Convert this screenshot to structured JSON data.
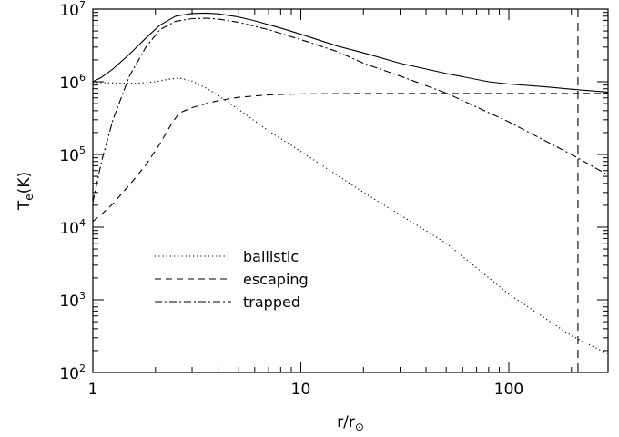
{
  "chart_data": {
    "type": "line",
    "xlabel": {
      "main": "r/r",
      "sub": "⊙"
    },
    "ylabel": {
      "main": "T",
      "sub": "e",
      "rest": "(K)"
    },
    "x_scale": "log",
    "y_scale": "log",
    "xlim": [
      1,
      300
    ],
    "ylim": [
      100,
      10000000
    ],
    "x_ticks": [
      {
        "value": 1,
        "label": "1"
      },
      {
        "value": 10,
        "label": "10"
      },
      {
        "value": 100,
        "label": "100"
      }
    ],
    "y_ticks": [
      {
        "value": 100,
        "base": "10",
        "exp": "2"
      },
      {
        "value": 1000,
        "base": "10",
        "exp": "3"
      },
      {
        "value": 10000,
        "base": "10",
        "exp": "4"
      },
      {
        "value": 100000,
        "base": "10",
        "exp": "5"
      },
      {
        "value": 1000000,
        "base": "10",
        "exp": "6"
      },
      {
        "value": 10000000,
        "base": "10",
        "exp": "7"
      }
    ],
    "grid": false,
    "legend_position": "lower-left",
    "vertical_line": {
      "x": 215,
      "style": "dashed"
    },
    "series": [
      {
        "key": "total",
        "style": "solid",
        "x": [
          1,
          1.1,
          1.25,
          1.5,
          1.8,
          2.1,
          2.5,
          3,
          3.5,
          4,
          5,
          6,
          8,
          10,
          15,
          20,
          30,
          50,
          80,
          100,
          150,
          200,
          300
        ],
        "y": [
          1000000,
          1150000,
          1500000,
          2400000,
          4000000,
          6000000,
          8000000,
          8700000,
          8800000,
          8600000,
          7800000,
          6900000,
          5500000,
          4500000,
          3100000,
          2500000,
          1800000,
          1300000,
          1000000,
          930000,
          850000,
          790000,
          720000
        ]
      },
      {
        "key": "ballistic",
        "name": "ballistic",
        "style": "dotted",
        "x": [
          1,
          1.3,
          1.6,
          2,
          2.3,
          2.6,
          3,
          3.5,
          4,
          5,
          7,
          10,
          20,
          50,
          100,
          200,
          300
        ],
        "y": [
          980000,
          960000,
          950000,
          1000000,
          1080000,
          1130000,
          1020000,
          820000,
          650000,
          420000,
          210000,
          110000,
          30000,
          6000,
          1200,
          320,
          180
        ]
      },
      {
        "key": "escaping",
        "name": "escaping",
        "style": "dashed",
        "x": [
          1,
          1.1,
          1.25,
          1.5,
          1.8,
          2.1,
          2.4,
          2.6,
          3,
          3.5,
          4,
          5,
          7,
          10,
          20,
          50,
          100,
          200,
          300
        ],
        "y": [
          12000,
          15000,
          21000,
          38000,
          72000,
          140000,
          270000,
          370000,
          440000,
          500000,
          550000,
          610000,
          660000,
          680000,
          690000,
          690000,
          690000,
          690000,
          690000
        ]
      },
      {
        "key": "trapped",
        "name": "trapped",
        "style": "dashdot",
        "x": [
          1,
          1.1,
          1.25,
          1.5,
          1.8,
          2.1,
          2.5,
          3,
          3.5,
          4,
          5,
          7,
          10,
          15,
          20,
          30,
          50,
          100,
          200,
          300
        ],
        "y": [
          22000,
          80000,
          300000,
          1200000,
          3000000,
          5200000,
          6800000,
          7400000,
          7500000,
          7300000,
          6600000,
          5200000,
          3800000,
          2600000,
          1800000,
          1200000,
          700000,
          280000,
          100000,
          52000
        ]
      }
    ]
  }
}
